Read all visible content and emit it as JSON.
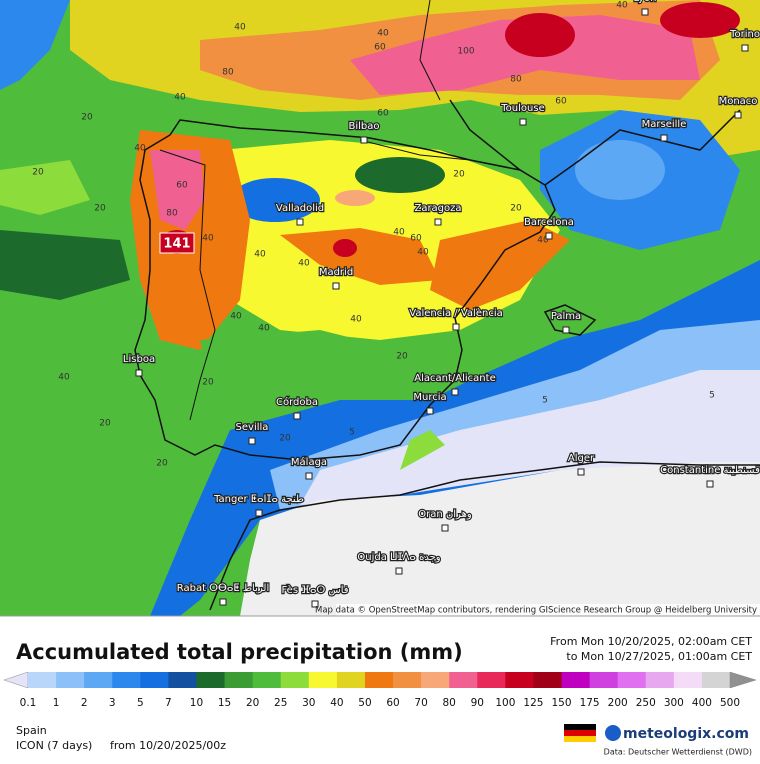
{
  "map": {
    "max_label": "141",
    "attribution": "Map data © OpenStreetMap contributors, rendering GIScience Research Group @ Heidelberg University",
    "cities": [
      "Lyon",
      "Torino",
      "Monaco",
      "Marseille",
      "Toulouse",
      "Bilbao",
      "Valladolid",
      "Zaragoza",
      "Barcelona",
      "Madrid",
      "Valencia / València",
      "Palma",
      "Lisboa",
      "Alacant/Alicante",
      "Murcia",
      "Córdoba",
      "Sevilla",
      "Málaga",
      "Alger",
      "Constantine قسنطينة",
      "Tanger ⵟⴰⵏⵊⴰ طنجة",
      "Oran وهران",
      "Oujda ⵡⵊⴷⴰ وجدة",
      "Rabat ⵔⴱⴰⵟ الرباط",
      "Fès ⴼⴰⵙ فاس"
    ],
    "contour_labels": [
      20,
      20,
      20,
      40,
      60,
      80,
      40,
      40,
      40,
      40,
      60,
      40,
      40,
      40,
      40,
      20,
      20,
      20,
      20,
      5,
      5,
      5,
      20,
      40,
      20,
      20,
      40,
      40,
      40,
      60,
      80,
      40,
      100,
      80,
      60,
      60,
      40
    ]
  },
  "legend": {
    "title": "Accumulated total precipitation (mm)",
    "period_from": "From Mon 10/20/2025, 02:00am CET",
    "period_to": "to Mon 10/27/2025, 01:00am CET",
    "values": [
      0.1,
      1,
      2,
      3,
      5,
      7,
      10,
      15,
      20,
      25,
      30,
      40,
      50,
      60,
      70,
      80,
      90,
      100,
      125,
      150,
      175,
      200,
      250,
      300,
      400,
      500
    ],
    "colors": [
      "#e4e4f8",
      "#b8d6fa",
      "#8cc0f8",
      "#5ca8f4",
      "#2c88ec",
      "#1470e0",
      "#1450a0",
      "#1c6a2c",
      "#3c9c34",
      "#50bc3c",
      "#8cdc3c",
      "#f8f830",
      "#e0d420",
      "#f07810",
      "#f09040",
      "#f8a878",
      "#f06090",
      "#e82858",
      "#c80020",
      "#a00018",
      "#c000c0",
      "#d040e0",
      "#e070f0",
      "#e8a8f0",
      "#f4dcf8",
      "#d4d4d4",
      "#909090"
    ]
  },
  "footer": {
    "region": "Spain",
    "model": "ICON (7 days)",
    "run": "from  10/20/2025/00z",
    "brand": "meteologix.com",
    "source": "Data: Deutscher Wetterdienst (DWD)"
  }
}
